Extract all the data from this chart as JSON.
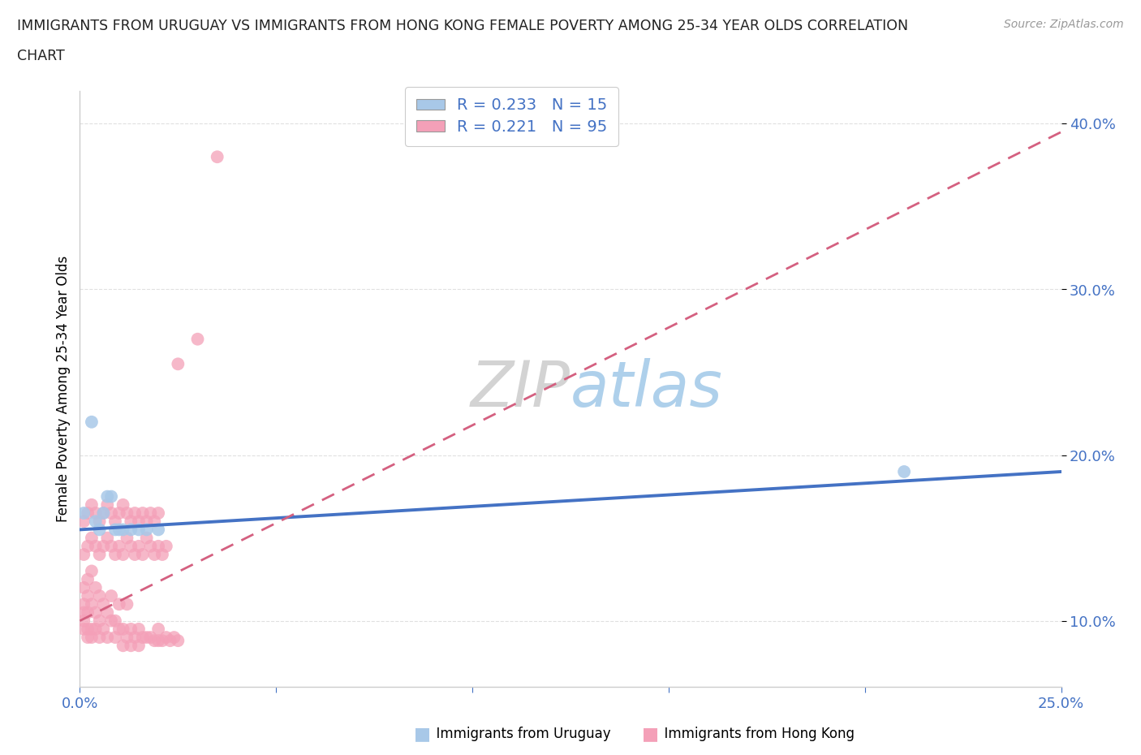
{
  "title_line1": "IMMIGRANTS FROM URUGUAY VS IMMIGRANTS FROM HONG KONG FEMALE POVERTY AMONG 25-34 YEAR OLDS CORRELATION",
  "title_line2": "CHART",
  "source": "Source: ZipAtlas.com",
  "ylabel_label": "Female Poverty Among 25-34 Year Olds",
  "xlim": [
    0.0,
    0.25
  ],
  "ylim": [
    0.06,
    0.42
  ],
  "color_uruguay": "#a8c8e8",
  "color_hk": "#f4a0b8",
  "trendline_color_uruguay": "#4472c4",
  "trendline_color_hk": "#d46080",
  "axis_tick_color": "#4472c4",
  "watermark_color": "#d0e8f4",
  "legend_text_color": "#4472c4",
  "grid_color": "#e0e0e0",
  "uruguay_x": [
    0.001,
    0.003,
    0.004,
    0.005,
    0.006,
    0.007,
    0.008,
    0.009,
    0.01,
    0.011,
    0.013,
    0.015,
    0.017,
    0.02,
    0.21
  ],
  "uruguay_y": [
    0.165,
    0.22,
    0.16,
    0.155,
    0.165,
    0.175,
    0.175,
    0.155,
    0.155,
    0.155,
    0.155,
    0.155,
    0.155,
    0.155,
    0.19
  ],
  "hk_x": [
    0.001,
    0.001,
    0.001,
    0.001,
    0.001,
    0.002,
    0.002,
    0.002,
    0.002,
    0.002,
    0.003,
    0.003,
    0.003,
    0.003,
    0.004,
    0.004,
    0.004,
    0.005,
    0.005,
    0.005,
    0.006,
    0.006,
    0.007,
    0.007,
    0.008,
    0.008,
    0.009,
    0.009,
    0.01,
    0.01,
    0.011,
    0.011,
    0.012,
    0.012,
    0.013,
    0.013,
    0.014,
    0.015,
    0.015,
    0.016,
    0.017,
    0.018,
    0.019,
    0.02,
    0.02,
    0.021,
    0.022,
    0.023,
    0.024,
    0.025,
    0.001,
    0.002,
    0.003,
    0.004,
    0.005,
    0.006,
    0.007,
    0.008,
    0.009,
    0.01,
    0.011,
    0.012,
    0.013,
    0.014,
    0.015,
    0.016,
    0.017,
    0.018,
    0.019,
    0.02,
    0.021,
    0.022,
    0.001,
    0.002,
    0.003,
    0.004,
    0.005,
    0.006,
    0.007,
    0.008,
    0.009,
    0.01,
    0.011,
    0.012,
    0.013,
    0.014,
    0.015,
    0.016,
    0.017,
    0.018,
    0.019,
    0.02,
    0.025,
    0.03,
    0.035
  ],
  "hk_y": [
    0.1,
    0.105,
    0.095,
    0.11,
    0.12,
    0.09,
    0.095,
    0.105,
    0.115,
    0.125,
    0.09,
    0.095,
    0.11,
    0.13,
    0.095,
    0.105,
    0.12,
    0.09,
    0.1,
    0.115,
    0.095,
    0.11,
    0.09,
    0.105,
    0.1,
    0.115,
    0.09,
    0.1,
    0.095,
    0.11,
    0.085,
    0.095,
    0.09,
    0.11,
    0.085,
    0.095,
    0.09,
    0.085,
    0.095,
    0.09,
    0.09,
    0.09,
    0.088,
    0.088,
    0.095,
    0.088,
    0.09,
    0.088,
    0.09,
    0.088,
    0.14,
    0.145,
    0.15,
    0.145,
    0.14,
    0.145,
    0.15,
    0.145,
    0.14,
    0.145,
    0.14,
    0.15,
    0.145,
    0.14,
    0.145,
    0.14,
    0.15,
    0.145,
    0.14,
    0.145,
    0.14,
    0.145,
    0.16,
    0.165,
    0.17,
    0.165,
    0.16,
    0.165,
    0.17,
    0.165,
    0.16,
    0.165,
    0.17,
    0.165,
    0.16,
    0.165,
    0.16,
    0.165,
    0.16,
    0.165,
    0.16,
    0.165,
    0.255,
    0.27,
    0.38
  ]
}
